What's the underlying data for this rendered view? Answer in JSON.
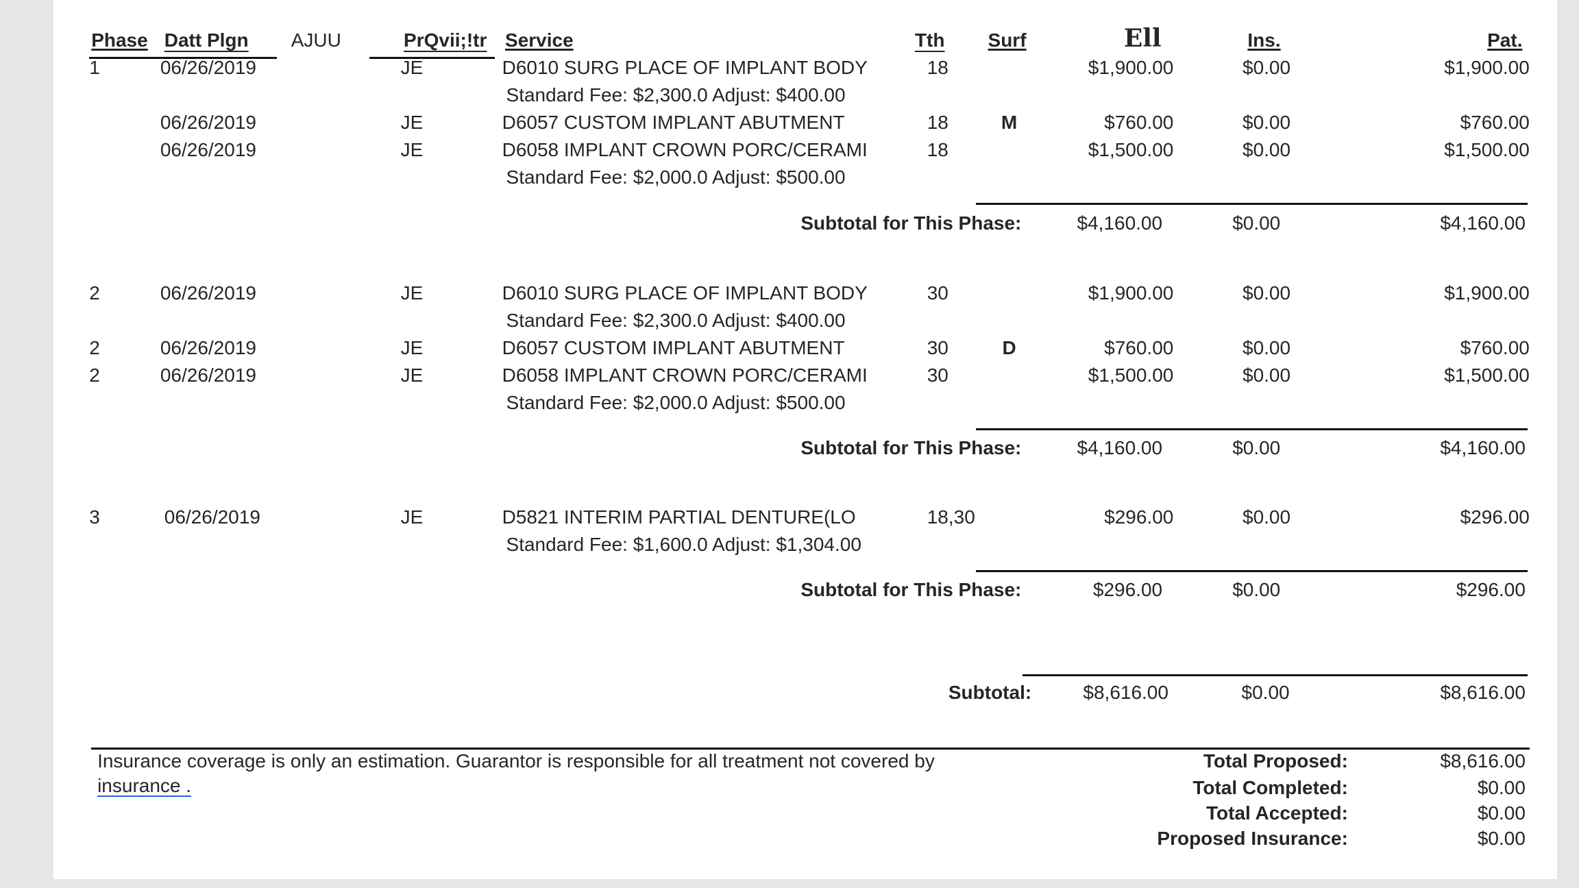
{
  "header": {
    "phase": "Phase",
    "date": "Datt Plgn",
    "ajuu": "AJUU",
    "provider": "PrQvii;!tr",
    "service": "Service",
    "tth": "Tth",
    "surf": "Surf",
    "fee": "Ell",
    "ins": "Ins.",
    "pat": "Pat."
  },
  "phases": [
    {
      "items": [
        {
          "phase": "1",
          "date": "06/26/2019",
          "prov": "JE",
          "service": "D6010 SURG PLACE OF IMPLANT BODY",
          "tth": "18",
          "surf": "",
          "fee": "$1,900.00",
          "ins": "$0.00",
          "pat": "$1,900.00",
          "note": "Standard Fee: $2,300.0 Adjust: $400.00"
        },
        {
          "phase": "",
          "date": "06/26/2019",
          "prov": "JE",
          "service": "D6057 CUSTOM IMPLANT ABUTMENT",
          "tth": "18",
          "surf": "M",
          "fee": "$760.00",
          "ins": "$0.00",
          "pat": "$760.00",
          "note": ""
        },
        {
          "phase": "",
          "date": "06/26/2019",
          "prov": "JE",
          "service": "D6058 IMPLANT CROWN PORC/CERAMI",
          "tth": "18",
          "surf": "",
          "fee": "$1,500.00",
          "ins": "$0.00",
          "pat": "$1,500.00",
          "note": "Standard Fee: $2,000.0 Adjust: $500.00"
        }
      ],
      "subtotal": {
        "label": "Subtotal for This Phase:",
        "fee": "$4,160.00",
        "ins": "$0.00",
        "pat": "$4,160.00"
      }
    },
    {
      "items": [
        {
          "phase": "2",
          "date": "06/26/2019",
          "prov": "JE",
          "service": "D6010 SURG PLACE OF IMPLANT BODY",
          "tth": "30",
          "surf": "",
          "fee": "$1,900.00",
          "ins": "$0.00",
          "pat": "$1,900.00",
          "note": "Standard Fee: $2,300.0 Adjust: $400.00"
        },
        {
          "phase": "2",
          "date": "06/26/2019",
          "prov": "JE",
          "service": "D6057 CUSTOM IMPLANT ABUTMENT",
          "tth": "30",
          "surf": "D",
          "fee": "$760.00",
          "ins": "$0.00",
          "pat": "$760.00",
          "note": ""
        },
        {
          "phase": "2",
          "date": "06/26/2019",
          "prov": "JE",
          "service": "D6058 IMPLANT CROWN PORC/CERAMI",
          "tth": "30",
          "surf": "",
          "fee": "$1,500.00",
          "ins": "$0.00",
          "pat": "$1,500.00",
          "note": "Standard Fee: $2,000.0 Adjust: $500.00"
        }
      ],
      "subtotal": {
        "label": "Subtotal for This Phase:",
        "fee": "$4,160.00",
        "ins": "$0.00",
        "pat": "$4,160.00"
      }
    },
    {
      "items": [
        {
          "phase": "3",
          "date": "06/26/2019",
          "prov": "JE",
          "service": "D5821  INTERIM PARTIAL DENTURE(LO",
          "tth": "18,30",
          "surf": "",
          "fee": "$296.00",
          "ins": "$0.00",
          "pat": "$296.00",
          "note": "Standard Fee: $1,600.0 Adjust: $1,304.00"
        }
      ],
      "subtotal": {
        "label": "Subtotal for This Phase:",
        "fee": "$296.00",
        "ins": "$0.00",
        "pat": "$296.00"
      }
    }
  ],
  "grand_subtotal": {
    "label": "Subtotal:",
    "fee": "$8,616.00",
    "ins": "$0.00",
    "pat": "$8,616.00"
  },
  "footer": {
    "disclaimer_line1": "Insurance coverage is only an estimation. Guarantor is responsible for all treatment not covered by",
    "disclaimer_line2": "insurance .",
    "totals": [
      {
        "label": "Total Proposed:",
        "value": "$8,616.00"
      },
      {
        "label": "Total Completed:",
        "value": "$0.00"
      },
      {
        "label": "Total Accepted:",
        "value": "$0.00"
      },
      {
        "label": "Proposed Insurance:",
        "value": "$0.00"
      }
    ]
  },
  "colors": {
    "text": "#262626",
    "page": "#ffffff",
    "background": "#e6e6e6",
    "spellcheck": "#e02020",
    "link_underline": "#2a62d8"
  }
}
